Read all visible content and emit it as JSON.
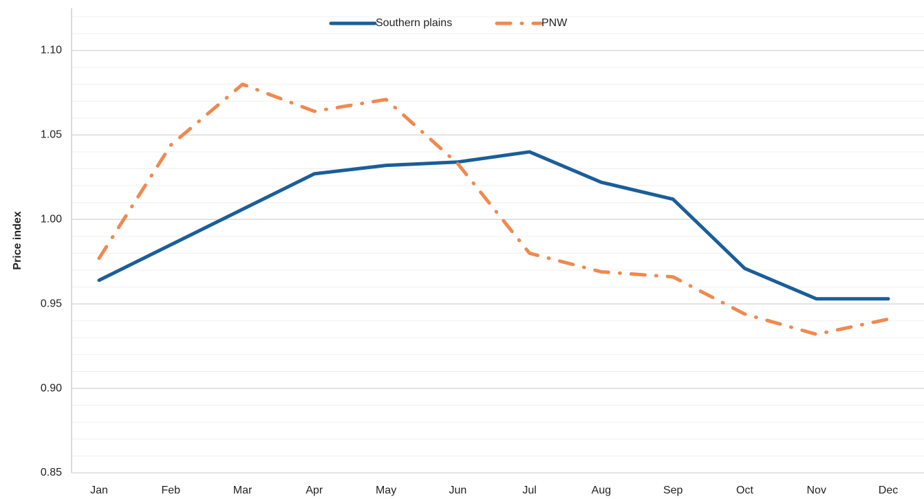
{
  "chart_data": {
    "type": "line",
    "categories": [
      "Jan",
      "Feb",
      "Mar",
      "Apr",
      "May",
      "Jun",
      "Jul",
      "Aug",
      "Sep",
      "Oct",
      "Nov",
      "Dec"
    ],
    "series": [
      {
        "name": "Southern plains",
        "color": "#1a5e9a",
        "dash": "solid",
        "values": [
          0.964,
          0.985,
          1.006,
          1.027,
          1.032,
          1.034,
          1.04,
          1.022,
          1.012,
          0.971,
          0.953,
          0.953
        ]
      },
      {
        "name": "PNW",
        "color": "#f0894f",
        "dash": "dash-dot",
        "values": [
          0.977,
          1.044,
          1.08,
          1.064,
          1.071,
          1.033,
          0.98,
          0.969,
          0.966,
          0.944,
          0.932,
          0.941
        ]
      }
    ],
    "y_label": "Price index",
    "ylim": [
      0.85,
      1.125
    ],
    "yticks": [
      {
        "value": 0.85,
        "label": "0.85"
      },
      {
        "value": 0.9,
        "label": "0.90"
      },
      {
        "value": 0.95,
        "label": "0.95"
      },
      {
        "value": 1.0,
        "label": "1.00"
      },
      {
        "value": 1.05,
        "label": "1.05"
      },
      {
        "value": 1.1,
        "label": "1.10"
      }
    ],
    "minor_yticks": [
      0.86,
      0.87,
      0.88,
      0.89,
      0.91,
      0.92,
      0.93,
      0.94,
      0.96,
      0.97,
      0.98,
      0.99,
      1.01,
      1.02,
      1.03,
      1.04,
      1.06,
      1.07,
      1.08,
      1.09,
      1.11,
      1.12
    ],
    "grid": true,
    "legend": "top"
  }
}
